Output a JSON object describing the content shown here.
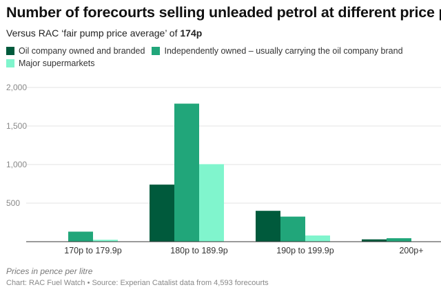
{
  "chart_data": {
    "type": "bar",
    "title": "Number of forecourts selling unleaded petrol at different price points",
    "subtitle_prefix": "Versus RAC ‘fair pump price average’ of ",
    "subtitle_value": "174p",
    "categories": [
      "170p to 179.9p",
      "180p to 189.9p",
      "190p to 199.9p",
      "200p+"
    ],
    "series": [
      {
        "name": "Oil company owned and branded",
        "color": "#005a3c",
        "values": [
          0,
          740,
          400,
          30
        ]
      },
      {
        "name": "Independently owned – usually carrying the oil company brand",
        "color": "#21a67a",
        "values": [
          130,
          1790,
          325,
          45
        ]
      },
      {
        "name": "Major supermarkets",
        "color": "#80f5cd",
        "values": [
          25,
          1005,
          80,
          0
        ]
      }
    ],
    "yticks": [
      "500",
      "1,000",
      "1,500",
      "2,000"
    ],
    "ytick_values": [
      500,
      1000,
      1500,
      2000
    ],
    "ylim": [
      0,
      2000
    ],
    "grid": true,
    "legend_position": "top-left",
    "footnote": "Prices in pence per litre",
    "credit": "Chart: RAC Fuel Watch • Source: Experian Catalist data from 4,593 forecourts"
  }
}
